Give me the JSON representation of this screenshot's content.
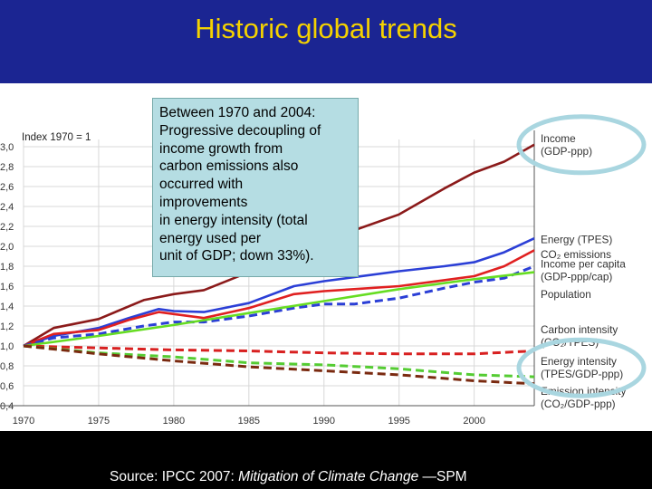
{
  "title": "Historic global trends",
  "callout": "Between 1970 and 2004:\nProgressive decoupling of\nincome growth from\ncarbon emissions also\noccurred with\nimprovements\nin energy intensity (total\nenergy used per\nunit of GDP; down 33%).",
  "source": {
    "prefix": "Source: IPCC 2007: ",
    "title": "Mitigation of Climate Change",
    "suffix": " —SPM"
  },
  "colors": {
    "background": "#0b0f6e",
    "title": "#f5d200",
    "callout_bg": "#b5dde3",
    "highlight_ellipse": "#a9d6e0"
  },
  "chart_data": {
    "type": "line",
    "axis_label": "Index 1970 = 1",
    "x_ticks": [
      "1970",
      "1975",
      "1980",
      "1985",
      "1990",
      "1995",
      "2000"
    ],
    "y_ticks": [
      "3,0",
      "2,8",
      "2,6",
      "2,4",
      "2,2",
      "2,0",
      "1,8",
      "1,6",
      "1,4",
      "1,2",
      "1,0",
      "0,8",
      "0,6",
      "0,4"
    ],
    "xlim": [
      1970,
      2004
    ],
    "ylim": [
      0.4,
      3.0
    ],
    "grid": true,
    "legend_position": "right",
    "series": [
      {
        "name": "Income (GDP-ppp)",
        "color": "#8b1a1a",
        "dashed": false,
        "x": [
          1970,
          1972,
          1975,
          1978,
          1980,
          1982,
          1985,
          1988,
          1990,
          1992,
          1995,
          1998,
          2000,
          2002,
          2004
        ],
        "y": [
          1.0,
          1.18,
          1.27,
          1.46,
          1.52,
          1.56,
          1.74,
          1.96,
          2.09,
          2.16,
          2.32,
          2.58,
          2.74,
          2.85,
          3.02
        ]
      },
      {
        "name": "Energy (TPES)",
        "color": "#2b3fd6",
        "dashed": false,
        "x": [
          1970,
          1972,
          1975,
          1977,
          1979,
          1980,
          1982,
          1985,
          1988,
          1990,
          1992,
          1995,
          1998,
          2000,
          2002,
          2004
        ],
        "y": [
          1.0,
          1.1,
          1.18,
          1.28,
          1.37,
          1.35,
          1.34,
          1.43,
          1.6,
          1.65,
          1.69,
          1.75,
          1.8,
          1.84,
          1.94,
          2.08
        ]
      },
      {
        "name": "CO2 emissions",
        "color": "#e02020",
        "dashed": false,
        "x": [
          1970,
          1972,
          1975,
          1977,
          1979,
          1980,
          1982,
          1985,
          1988,
          1990,
          1992,
          1995,
          1998,
          2000,
          2002,
          2004
        ],
        "y": [
          1.0,
          1.12,
          1.16,
          1.26,
          1.34,
          1.32,
          1.28,
          1.38,
          1.52,
          1.55,
          1.57,
          1.6,
          1.66,
          1.7,
          1.8,
          1.96
        ]
      },
      {
        "name": "Income per capita (GDP-ppp/cap)",
        "color": "#2b3fd6",
        "dashed": true,
        "x": [
          1970,
          1972,
          1975,
          1978,
          1980,
          1982,
          1985,
          1988,
          1990,
          1992,
          1995,
          1998,
          2000,
          2002,
          2004
        ],
        "y": [
          1.0,
          1.08,
          1.12,
          1.2,
          1.24,
          1.24,
          1.3,
          1.38,
          1.42,
          1.42,
          1.48,
          1.58,
          1.64,
          1.68,
          1.8
        ]
      },
      {
        "name": "Population",
        "color": "#66dd22",
        "dashed": false,
        "x": [
          1970,
          1975,
          1980,
          1985,
          1990,
          1995,
          2000,
          2004
        ],
        "y": [
          1.0,
          1.1,
          1.21,
          1.33,
          1.45,
          1.57,
          1.67,
          1.74
        ]
      },
      {
        "name": "Carbon intensity (CO2/TPES)",
        "color": "#d82020",
        "dashed": true,
        "x": [
          1970,
          1975,
          1980,
          1985,
          1990,
          1995,
          2000,
          2004
        ],
        "y": [
          1.0,
          0.98,
          0.96,
          0.95,
          0.93,
          0.92,
          0.92,
          0.95
        ]
      },
      {
        "name": "Energy intensity (TPES/GDP-ppp)",
        "color": "#55cc33",
        "dashed": true,
        "x": [
          1970,
          1975,
          1980,
          1985,
          1990,
          1995,
          2000,
          2004
        ],
        "y": [
          1.0,
          0.93,
          0.89,
          0.83,
          0.81,
          0.77,
          0.71,
          0.69
        ]
      },
      {
        "name": "Emission intensity (CO2/GDP-ppp)",
        "color": "#7a2a10",
        "dashed": true,
        "x": [
          1970,
          1975,
          1980,
          1985,
          1990,
          1995,
          2000,
          2004
        ],
        "y": [
          1.0,
          0.92,
          0.85,
          0.79,
          0.75,
          0.71,
          0.65,
          0.62
        ]
      }
    ],
    "legend_labels": [
      {
        "lines": [
          "Income",
          "(GDP-ppp)"
        ],
        "value": 3.02
      },
      {
        "lines": [
          "Energy (TPES)"
        ],
        "value": 2.07
      },
      {
        "lines": [
          "CO₂ emissions"
        ],
        "value": 1.92
      },
      {
        "lines": [
          "Income per capita",
          "(GDP-ppp/cap)"
        ],
        "value": 1.76
      },
      {
        "lines": [
          "Population"
        ],
        "value": 1.52
      },
      {
        "lines": [
          "Carbon intensity",
          "(CO₂/TPES)"
        ],
        "value": 1.1
      },
      {
        "lines": [
          "Energy intensity",
          "(TPES/GDP-ppp)"
        ],
        "value": 0.78
      },
      {
        "lines": [
          "Emission intensity",
          "(CO₂/GDP-ppp)"
        ],
        "value": 0.48
      }
    ],
    "highlighted_labels": [
      "Income (GDP-ppp)",
      "Energy intensity (TPES/GDP-ppp)"
    ]
  }
}
